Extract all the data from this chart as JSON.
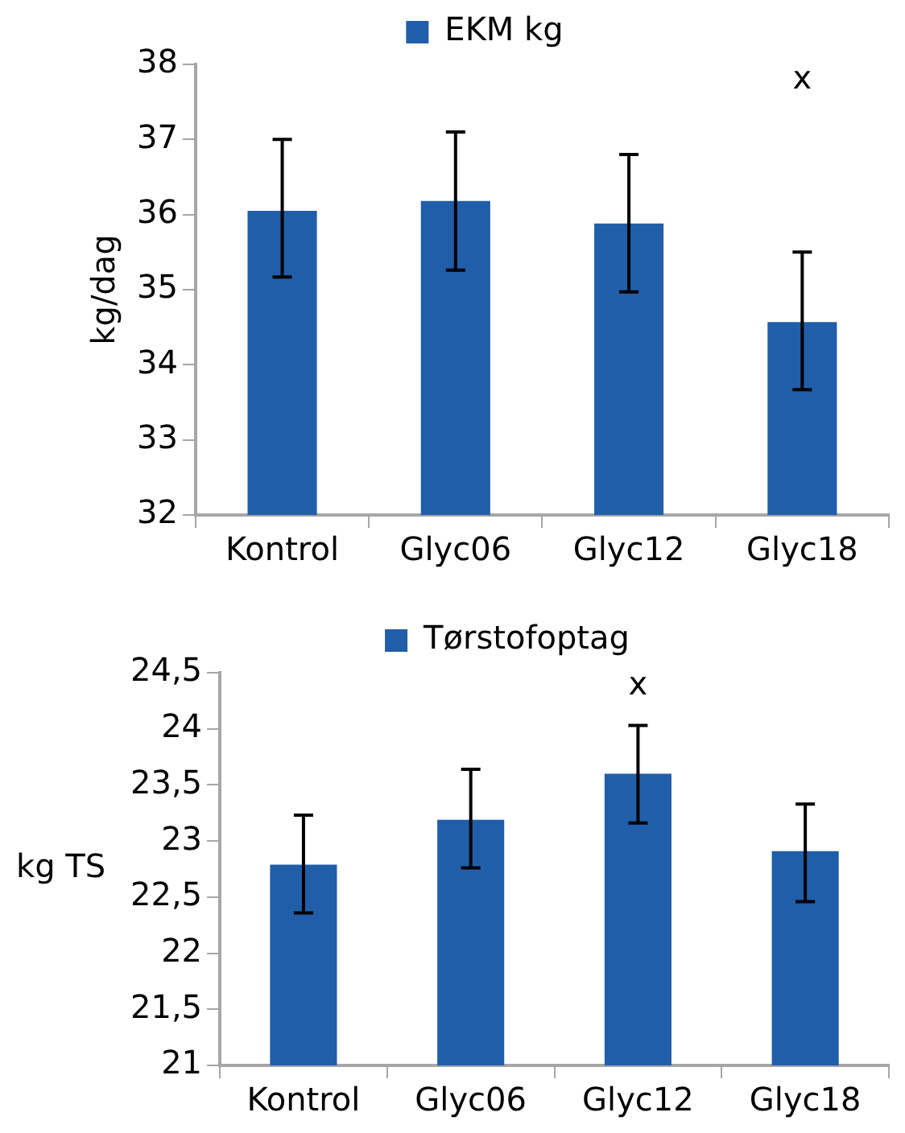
{
  "chart_data": [
    {
      "type": "bar",
      "ylabel": "kg/dag",
      "categories": [
        "Kontrol",
        "Glyc06",
        "Glyc12",
        "Glyc18"
      ],
      "series": [
        {
          "name": "EKM kg",
          "color": "#215ea9",
          "values": [
            36.05,
            36.18,
            35.88,
            34.57
          ],
          "errors": [
            [
              35.17,
              37.0
            ],
            [
              35.26,
              37.1
            ],
            [
              34.97,
              36.8
            ],
            [
              33.67,
              35.5
            ]
          ]
        }
      ],
      "ylim": [
        32,
        38
      ],
      "yticks": [
        32,
        33,
        34,
        35,
        36,
        37,
        38
      ],
      "grid": false,
      "legend": "top",
      "annotations": [
        "x"
      ]
    },
    {
      "type": "bar",
      "ylabel": "kg TS",
      "categories": [
        "Kontrol",
        "Glyc06",
        "Glyc12",
        "Glyc18"
      ],
      "series": [
        {
          "name": "Tørstofoptag",
          "color": "#215ea9",
          "values": [
            22.79,
            23.19,
            23.6,
            22.91
          ],
          "errors": [
            [
              22.36,
              23.23
            ],
            [
              22.76,
              23.64
            ],
            [
              23.16,
              24.03
            ],
            [
              22.46,
              23.33
            ]
          ]
        }
      ],
      "ylim": [
        21,
        24.5
      ],
      "yticks": [
        21,
        {
          "value": 21.5,
          "label": "21,5"
        },
        22,
        {
          "value": 22.5,
          "label": "22,5"
        },
        23,
        {
          "value": 23.5,
          "label": "23,5"
        },
        24,
        {
          "value": 24.5,
          "label": "24,5"
        }
      ],
      "grid": false,
      "legend": "top",
      "annotations": [
        "x"
      ]
    }
  ]
}
